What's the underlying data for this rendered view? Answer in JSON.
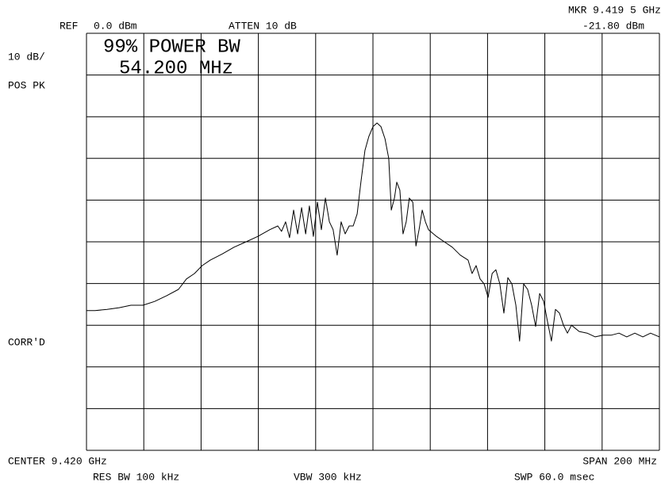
{
  "chart_data": {
    "type": "line",
    "texts": [
      "REF",
      "0.0 dBm",
      "ATTEN 10 dB",
      "MKR 9.419 5 GHz",
      "-21.80 dBm",
      "10 dB/",
      "POS PK",
      "CORR'D",
      "CENTER 9.420 GHz",
      "SPAN 200 MHz",
      "RES BW 100 kHz",
      "VBW 300 kHz",
      "SWP 60.0 msec"
    ],
    "annotations": [
      "99% POWER BW",
      "54.200 MHz"
    ],
    "xlim": [
      9.32,
      9.52
    ],
    "ylim": [
      -100,
      0
    ],
    "xticks": [
      9.32,
      9.34,
      9.36,
      9.38,
      9.4,
      9.42,
      9.44,
      9.46,
      9.48,
      9.5,
      9.52
    ],
    "yticks": [
      -100,
      -90,
      -80,
      -70,
      -60,
      -50,
      -40,
      -30,
      -20,
      -10,
      0
    ],
    "grid": true,
    "series": [
      {
        "color": "#000000",
        "x": [
          9.32,
          9.323,
          9.3272,
          9.3314,
          9.3355,
          9.3397,
          9.3438,
          9.348,
          9.3521,
          9.3549,
          9.3577,
          9.3604,
          9.3632,
          9.3674,
          9.3715,
          9.3757,
          9.3798,
          9.384,
          9.3868,
          9.3881,
          9.3895,
          9.3909,
          9.3923,
          9.3937,
          9.3951,
          9.3965,
          9.3978,
          9.3992,
          9.4006,
          9.402,
          9.4034,
          9.4048,
          9.4061,
          9.4075,
          9.4089,
          9.4103,
          9.4117,
          9.4131,
          9.4145,
          9.4158,
          9.4172,
          9.4186,
          9.42,
          9.4214,
          9.4228,
          9.4242,
          9.4255,
          9.4264,
          9.4275,
          9.4283,
          9.4294,
          9.4305,
          9.4316,
          9.4327,
          9.4339,
          9.435,
          9.4361,
          9.4372,
          9.4383,
          9.4394,
          9.4422,
          9.4449,
          9.4477,
          9.4505,
          9.4532,
          9.4546,
          9.456,
          9.4574,
          9.4588,
          9.4602,
          9.4616,
          9.4629,
          9.4643,
          9.4657,
          9.4671,
          9.4685,
          9.4699,
          9.4712,
          9.4726,
          9.474,
          9.4754,
          9.4768,
          9.4782,
          9.4796,
          9.4809,
          9.4823,
          9.4837,
          9.4851,
          9.4865,
          9.4879,
          9.4893,
          9.492,
          9.4948,
          9.4976,
          9.5003,
          9.5031,
          9.5059,
          9.5086,
          9.5114,
          9.5142,
          9.5169,
          9.52
        ],
        "values": [
          -66.5,
          -66.5,
          -66.2,
          -65.8,
          -65.2,
          -65.2,
          -64.3,
          -62.9,
          -61.4,
          -58.9,
          -57.6,
          -55.7,
          -54.4,
          -52.9,
          -51.3,
          -50.0,
          -48.7,
          -47.1,
          -46.2,
          -47.5,
          -45.2,
          -49.0,
          -42.4,
          -48.1,
          -41.8,
          -48.1,
          -41.4,
          -48.7,
          -40.5,
          -47.1,
          -39.5,
          -45.2,
          -47.1,
          -53.2,
          -45.2,
          -48.1,
          -46.2,
          -46.2,
          -43.3,
          -35.7,
          -28.1,
          -24.7,
          -22.4,
          -21.5,
          -22.4,
          -25.3,
          -30.0,
          -42.4,
          -39.5,
          -35.7,
          -37.6,
          -48.1,
          -45.2,
          -39.5,
          -40.5,
          -51.0,
          -47.1,
          -42.4,
          -45.2,
          -47.1,
          -48.7,
          -50.0,
          -51.3,
          -53.2,
          -54.4,
          -57.6,
          -55.7,
          -58.9,
          -60.1,
          -63.3,
          -57.6,
          -56.7,
          -60.1,
          -67.1,
          -58.6,
          -60.1,
          -65.2,
          -73.8,
          -60.1,
          -61.4,
          -65.2,
          -70.3,
          -62.4,
          -64.3,
          -69.0,
          -73.8,
          -66.2,
          -67.1,
          -70.0,
          -71.9,
          -70.0,
          -71.5,
          -71.9,
          -72.8,
          -72.4,
          -72.4,
          -71.9,
          -72.8,
          -71.9,
          -72.8,
          -71.9,
          -72.8
        ]
      }
    ]
  }
}
